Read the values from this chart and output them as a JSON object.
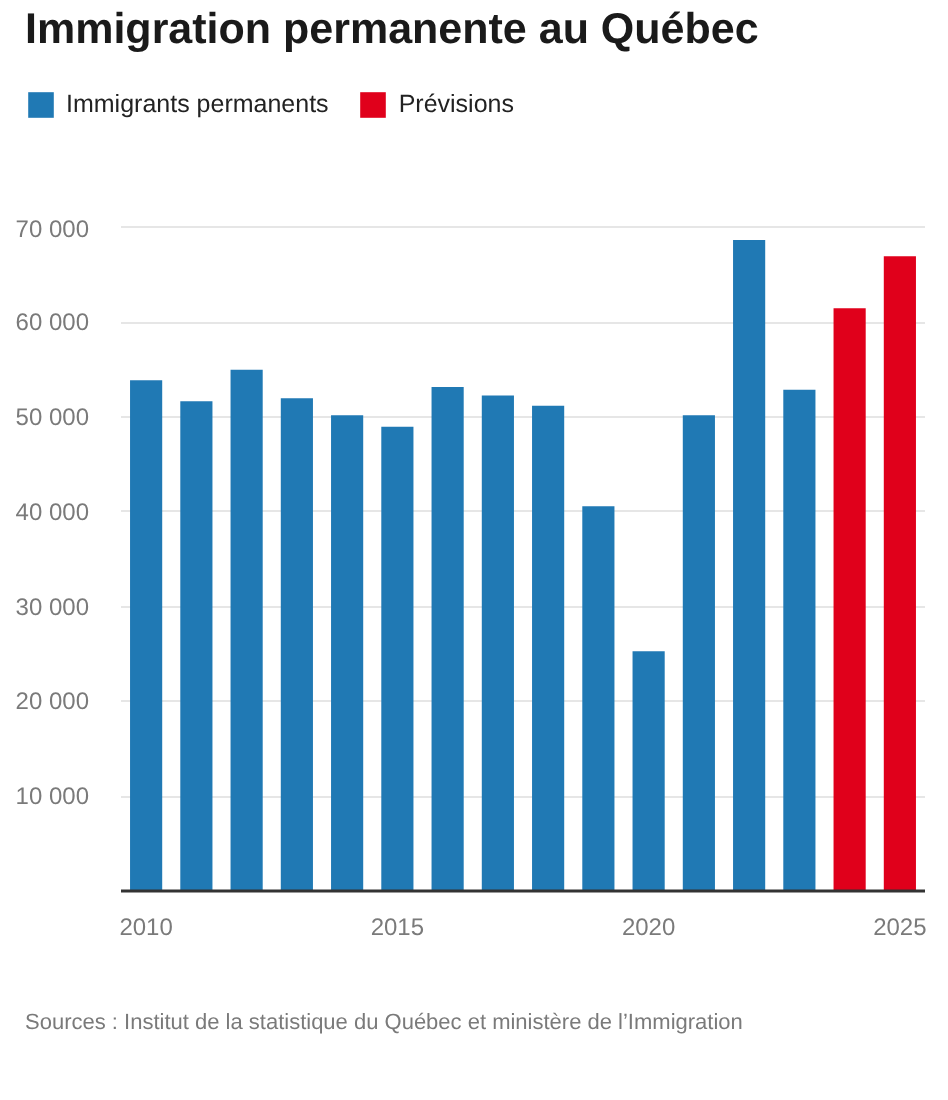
{
  "chart_data": {
    "type": "bar",
    "title": "Immigration permanente au Québec",
    "x": [
      2010,
      2011,
      2012,
      2013,
      2014,
      2015,
      2016,
      2017,
      2018,
      2019,
      2020,
      2021,
      2022,
      2023,
      2024,
      2025
    ],
    "series": [
      {
        "name": "Immigrants permanents",
        "color": "#2079b4",
        "values": [
          53900,
          51700,
          55000,
          52000,
          50200,
          49000,
          53200,
          52300,
          51200,
          40600,
          25300,
          50200,
          68700,
          52900,
          null,
          null
        ]
      },
      {
        "name": "Prévisions",
        "color": "#e0001b",
        "values": [
          null,
          null,
          null,
          null,
          null,
          null,
          null,
          null,
          null,
          null,
          null,
          null,
          null,
          null,
          61500,
          67000
        ]
      }
    ],
    "xlim": [
      2009.5,
      2025.5
    ],
    "xticks": [
      2010,
      2015,
      2020,
      2025
    ],
    "ylim": [
      0,
      70500
    ],
    "yticks": [
      {
        "value": 10000,
        "label": "10 000"
      },
      {
        "value": 20000,
        "label": "20 000"
      },
      {
        "value": 30000,
        "label": "30 000"
      },
      {
        "value": 40000,
        "label": "40 000"
      },
      {
        "value": 50000,
        "label": "50 000"
      },
      {
        "value": 60000,
        "label": "60 000"
      },
      {
        "value": 70000,
        "label": "70 000"
      }
    ],
    "grid": "y",
    "legend": "top left",
    "annotations": [
      "Sources : Institut de la statistique du Québec et ministère de l’Immigration"
    ]
  }
}
